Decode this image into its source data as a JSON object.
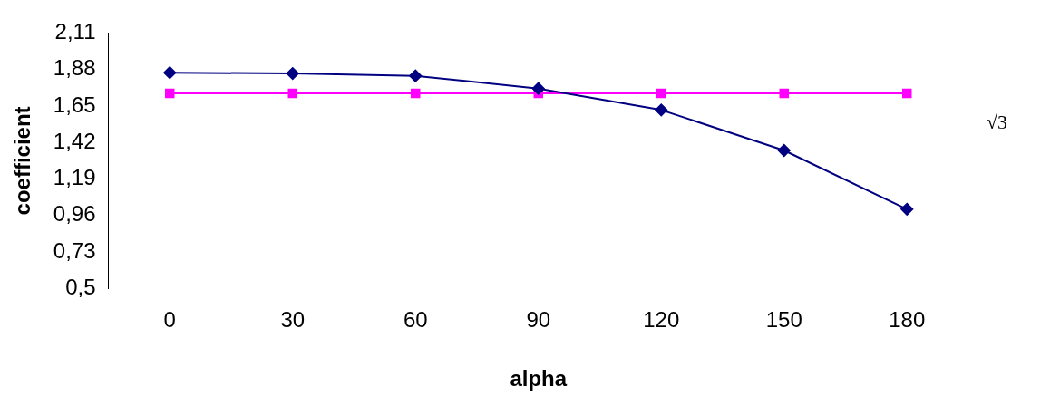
{
  "chart_data": {
    "type": "line",
    "xlabel": "alpha",
    "ylabel": "coefficient",
    "categories": [
      "0",
      "30",
      "60",
      "90",
      "120",
      "150",
      "180"
    ],
    "series": [
      {
        "color": "#000080",
        "marker": "diamond",
        "values": [
          1.86,
          1.855,
          1.84,
          1.76,
          1.625,
          1.37,
          1.0
        ]
      },
      {
        "color": "#ff00ff",
        "marker": "square",
        "values": [
          1.73,
          1.73,
          1.73,
          1.73,
          1.73,
          1.73,
          1.73
        ]
      }
    ],
    "ylim": [
      0.5,
      2.11
    ],
    "yticks": [
      {
        "value": 0.5,
        "label": "0,5"
      },
      {
        "value": 0.73,
        "label": "0,73"
      },
      {
        "value": 0.96,
        "label": "0,96"
      },
      {
        "value": 1.19,
        "label": "1,19"
      },
      {
        "value": 1.42,
        "label": "1,42"
      },
      {
        "value": 1.65,
        "label": "1,65"
      },
      {
        "value": 1.88,
        "label": "1,88"
      },
      {
        "value": 2.11,
        "label": "2,11"
      }
    ],
    "annotations": [
      "√3"
    ],
    "grid": false,
    "legend": false
  }
}
